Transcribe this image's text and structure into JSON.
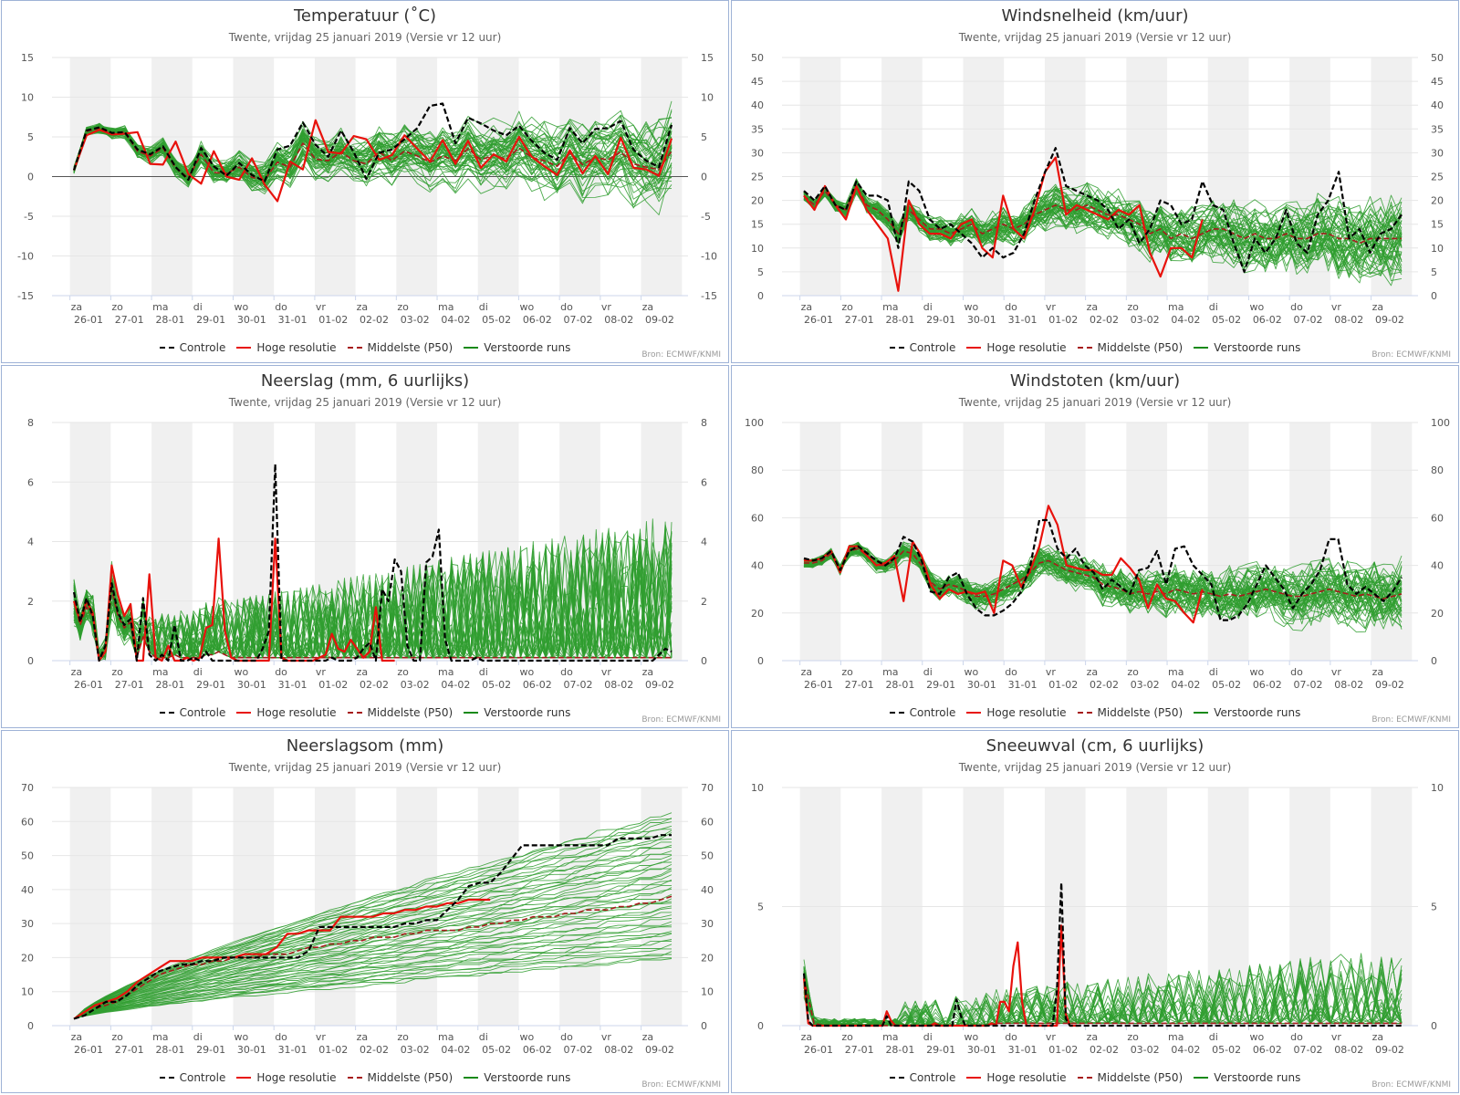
{
  "subtitle": "Twente, vrijdag 25 januari 2019 (Versie vr 12 uur)",
  "credit": "Bron: ECMWF/KNMI",
  "legend": [
    {
      "label": "Controle",
      "color": "#000000",
      "style": "dashed"
    },
    {
      "label": "Hoge resolutie",
      "color": "#e8120c",
      "style": "solid"
    },
    {
      "label": "Middelste (P50)",
      "color": "#a61b1b",
      "style": "dashed"
    },
    {
      "label": "Verstoorde runs",
      "color": "#1a8a1a",
      "style": "solid"
    }
  ],
  "colors": {
    "control": "#000000",
    "hires": "#e8120c",
    "median": "#a61b1b",
    "ensemble": "#2f9e2f",
    "band": "#f0f0f0"
  },
  "day_labels": [
    {
      "day": "za",
      "date": "26-01"
    },
    {
      "day": "zo",
      "date": "27-01"
    },
    {
      "day": "ma",
      "date": "28-01"
    },
    {
      "day": "di",
      "date": "29-01"
    },
    {
      "day": "wo",
      "date": "30-01"
    },
    {
      "day": "do",
      "date": "31-01"
    },
    {
      "day": "vr",
      "date": "01-02"
    },
    {
      "day": "za",
      "date": "02-02"
    },
    {
      "day": "zo",
      "date": "03-02"
    },
    {
      "day": "ma",
      "date": "04-02"
    },
    {
      "day": "di",
      "date": "05-02"
    },
    {
      "day": "wo",
      "date": "06-02"
    },
    {
      "day": "do",
      "date": "07-02"
    },
    {
      "day": "vr",
      "date": "08-02"
    },
    {
      "day": "za",
      "date": "09-02"
    }
  ],
  "chart_data": [
    {
      "type": "line",
      "title": "Temperatuur (˚C)",
      "ylim": [
        -15,
        15
      ],
      "yticks": [
        -15,
        -10,
        -5,
        0,
        5,
        10,
        15
      ],
      "zero_line": true,
      "control": [
        0.8,
        5.8,
        6.2,
        5.5,
        5.6,
        3.4,
        2.8,
        3.8,
        1.2,
        -0.4,
        3.6,
        1.3,
        0.1,
        1.7,
        0.2,
        -0.6,
        3.4,
        3.9,
        6.8,
        4.0,
        2.5,
        5.8,
        3.1,
        -0.3,
        3.0,
        3.4,
        4.7,
        6.1,
        8.9,
        9.2,
        4.2,
        7.4,
        6.7,
        5.8,
        5.2,
        6.4,
        4.5,
        3.0,
        2.1,
        6.1,
        4.2,
        6.0,
        6.1,
        7.0,
        3.4,
        2.0,
        1.2,
        6.5
      ],
      "hires": [
        0.8,
        5.2,
        5.9,
        5.3,
        5.4,
        5.6,
        1.6,
        1.5,
        4.4,
        0.3,
        -0.9,
        3.2,
        0.0,
        -0.4,
        2.3,
        -1.0,
        -3.1,
        1.9,
        0.9,
        7.1,
        3.1,
        2.9,
        5.1,
        4.7,
        2.1,
        2.7,
        5.2,
        3.5,
        1.9,
        4.6,
        1.6,
        4.5,
        1.1,
        2.8,
        1.9,
        5.0,
        2.5,
        1.3,
        0.2,
        3.3,
        0.4,
        2.6,
        0.3,
        4.9,
        1.1,
        0.9,
        0.1,
        4.8
      ],
      "median": [
        0.8,
        5.7,
        6.1,
        5.4,
        5.6,
        3.2,
        2.6,
        3.6,
        1.1,
        -0.2,
        2.8,
        0.5,
        0.4,
        1.2,
        -0.1,
        -0.4,
        1.8,
        1.2,
        4.2,
        2.2,
        2.0,
        3.1,
        2.0,
        1.6,
        3.1,
        2.0,
        3.2,
        2.6,
        1.8,
        2.6,
        2.0,
        3.5,
        2.1,
        2.7,
        2.2,
        3.6,
        2.4,
        2.0,
        1.3,
        3.0,
        1.5,
        2.4,
        2.1,
        3.1,
        1.6,
        1.2,
        0.9,
        3.2
      ],
      "ensemble": {
        "seed": 11,
        "members": 50,
        "spread": 4.2,
        "noise": 2.6
      }
    },
    {
      "type": "line",
      "title": "Windsnelheid (km/uur)",
      "ylim": [
        0,
        50
      ],
      "yticks": [
        0,
        5,
        10,
        15,
        20,
        25,
        30,
        35,
        40,
        45,
        50
      ],
      "control": [
        22,
        20,
        23,
        19,
        18,
        24,
        21,
        21,
        20,
        10,
        24,
        22,
        16,
        14,
        15,
        13,
        11,
        8,
        10,
        8,
        9,
        13,
        20,
        26,
        31,
        23,
        22,
        21,
        20,
        18,
        14,
        16,
        11,
        14,
        20,
        19,
        15,
        16,
        24,
        19,
        18,
        11,
        5,
        12,
        9,
        12,
        18,
        11,
        9,
        17,
        20,
        26,
        12,
        14,
        9,
        13,
        14,
        17
      ],
      "hires": [
        21,
        18,
        23,
        19,
        16,
        23,
        18,
        15,
        12,
        1,
        20,
        15,
        13,
        13,
        12,
        15,
        16,
        10,
        8,
        21,
        14,
        12,
        18,
        26,
        29,
        17,
        19,
        18,
        17,
        16,
        18,
        17,
        19,
        9,
        4,
        10,
        10,
        8,
        16
      ],
      "median": [
        21,
        19,
        22,
        19,
        18,
        23,
        19,
        18,
        16,
        13,
        18,
        16,
        14,
        14,
        13,
        14,
        15,
        13,
        14,
        15,
        14,
        15,
        17,
        18,
        19,
        18,
        18,
        19,
        18,
        17,
        17,
        16,
        15,
        13,
        14,
        12,
        13,
        12,
        13,
        14,
        14,
        13,
        12,
        13,
        12,
        12,
        13,
        12,
        12,
        13,
        13,
        12,
        12,
        11,
        12,
        12,
        12,
        12
      ],
      "ensemble": {
        "seed": 23,
        "members": 50,
        "spread": 5,
        "noise": 5.5
      }
    },
    {
      "type": "line",
      "title": "Neerslag (mm, 6 uurlijks)",
      "ylim": [
        0,
        8
      ],
      "yticks": [
        0,
        2,
        4,
        6,
        8
      ],
      "positive": true,
      "control": [
        2.3,
        1.3,
        2.1,
        1.5,
        0.0,
        0.5,
        2.6,
        1.6,
        1.2,
        1.4,
        0.0,
        2.1,
        0.2,
        0.0,
        0.2,
        0.0,
        1.2,
        0.0,
        0.0,
        0.1,
        0.0,
        0.3,
        0.0,
        0.0,
        0.0,
        0.0,
        0.0,
        0.0,
        0.0,
        0.0,
        0.4,
        1.0,
        6.6,
        0.0,
        0.0,
        0.0,
        0.0,
        0.0,
        0.0,
        0.0,
        0.0,
        0.1,
        0.0,
        0.0,
        0.0,
        0.1,
        0.4,
        0.6,
        0.0,
        2.4,
        2.0,
        3.4,
        3.0,
        0.5,
        0.0,
        0.0,
        3.3,
        3.5,
        4.4,
        0.7,
        0.0,
        0.0,
        0.0,
        0.0,
        0.1,
        0.0,
        0.0,
        0.0,
        0.0,
        0.0,
        0.0,
        0.0,
        0.0,
        0.0,
        0.0,
        0.0,
        0.0,
        0.0,
        0.0,
        0.0,
        0.0,
        0.0,
        0.0,
        0.0,
        0.0,
        0.0,
        0.0,
        0.0,
        0.0,
        0.0,
        0.0,
        0.0,
        0.0,
        0.2,
        0.4,
        0.3
      ],
      "hires": [
        2.0,
        1.3,
        2.0,
        1.6,
        0.0,
        0.3,
        3.2,
        2.2,
        1.5,
        1.9,
        0.0,
        0.0,
        2.9,
        0.1,
        0.0,
        0.5,
        0.0,
        0.0,
        0.1,
        0.0,
        0.1,
        1.1,
        1.2,
        4.1,
        1.0,
        0.1,
        0.0,
        0.0,
        0.0,
        0.0,
        0.0,
        0.0,
        4.1,
        0.1,
        0.0,
        0.0,
        0.0,
        0.0,
        0.0,
        0.1,
        0.2,
        0.9,
        0.4,
        0.3,
        0.7,
        0.4,
        0.1,
        0.3,
        1.8,
        0.0,
        0.0,
        0.0
      ],
      "median": [
        2.0,
        1.2,
        1.8,
        1.5,
        0.1,
        0.4,
        2.4,
        1.5,
        1.1,
        1.3,
        0.1,
        0.8,
        0.3,
        0.1,
        0.1,
        0.1,
        0.2,
        0.1,
        0.1,
        0.1,
        0.1,
        0.2,
        0.2,
        0.3,
        0.2,
        0.1,
        0.1,
        0.1,
        0.1,
        0.1,
        0.1,
        0.1,
        0.1,
        0.1,
        0.1,
        0.1,
        0.1,
        0.1,
        0.1,
        0.1,
        0.1,
        0.1,
        0.1,
        0.1,
        0.1,
        0.1,
        0.1,
        0.1,
        0.1,
        0.1,
        0.1,
        0.1,
        0.1,
        0.1,
        0.1,
        0.1,
        0.1,
        0.1,
        0.1,
        0.1,
        0.1,
        0.1,
        0.1,
        0.1,
        0.1,
        0.1,
        0.1,
        0.1,
        0.1,
        0.1,
        0.1,
        0.1,
        0.1,
        0.1,
        0.1,
        0.1,
        0.1,
        0.1,
        0.1,
        0.1,
        0.1,
        0.1,
        0.1,
        0.1,
        0.1,
        0.1,
        0.1,
        0.1,
        0.1,
        0.1,
        0.1,
        0.1,
        0.1,
        0.1,
        0.1,
        0.1
      ],
      "ensemble": {
        "seed": 37,
        "members": 50,
        "spread": 0.4,
        "noise": 1.8,
        "sparse": 0.55
      }
    },
    {
      "type": "line",
      "title": "Windstoten (km/uur)",
      "ylim": [
        0,
        100
      ],
      "yticks": [
        0,
        20,
        40,
        60,
        80,
        100
      ],
      "control": [
        43,
        42,
        43,
        46,
        38,
        46,
        48,
        45,
        42,
        40,
        43,
        52,
        50,
        42,
        29,
        28,
        35,
        37,
        28,
        22,
        19,
        19,
        21,
        24,
        29,
        40,
        59,
        59,
        47,
        43,
        47,
        40,
        37,
        30,
        34,
        31,
        28,
        38,
        39,
        46,
        32,
        47,
        48,
        40,
        36,
        32,
        17,
        17,
        19,
        24,
        32,
        40,
        35,
        30,
        22,
        28,
        32,
        38,
        51,
        51,
        32,
        28,
        31,
        28,
        25,
        29,
        35
      ],
      "hires": [
        42,
        42,
        43,
        46,
        37,
        48,
        48,
        44,
        40,
        41,
        44,
        25,
        50,
        44,
        32,
        26,
        30,
        28,
        29,
        28,
        29,
        20,
        42,
        40,
        31,
        38,
        48,
        65,
        57,
        40,
        39,
        38,
        38,
        36,
        36,
        43,
        39,
        34,
        22,
        32,
        26,
        25,
        20,
        16,
        30
      ],
      "median": [
        41,
        41,
        42,
        45,
        38,
        46,
        47,
        44,
        40,
        40,
        42,
        46,
        45,
        40,
        33,
        30,
        32,
        31,
        29,
        27,
        27,
        28,
        30,
        32,
        34,
        37,
        41,
        42,
        40,
        38,
        37,
        36,
        35,
        32,
        31,
        30,
        28,
        29,
        28,
        29,
        28,
        30,
        29,
        28,
        29,
        28,
        27,
        28,
        27,
        28,
        29,
        30,
        29,
        28,
        27,
        27,
        28,
        29,
        30,
        29,
        28,
        27,
        28,
        27,
        26,
        27,
        28
      ],
      "ensemble": {
        "seed": 51,
        "members": 50,
        "spread": 8,
        "noise": 10
      }
    },
    {
      "type": "line",
      "title": "Neerslagsom (mm)",
      "ylim": [
        0,
        70
      ],
      "yticks": [
        0,
        10,
        20,
        30,
        40,
        50,
        60,
        70
      ],
      "cumulative": true,
      "control": [
        2,
        3,
        5,
        7,
        7,
        9,
        12,
        14,
        16,
        17,
        18,
        18,
        19,
        19,
        20,
        20,
        20,
        20,
        20,
        20,
        20,
        20,
        22,
        29,
        29,
        29,
        29,
        29,
        29,
        29,
        29,
        30,
        30,
        31,
        31,
        34,
        37,
        41,
        42,
        42,
        45,
        49,
        53,
        53,
        53,
        53,
        53,
        53,
        53,
        53,
        53,
        55,
        55,
        55,
        55,
        56,
        56
      ],
      "hires": [
        2,
        4,
        6,
        7,
        8,
        10,
        13,
        15,
        17,
        19,
        19,
        19,
        20,
        20,
        20,
        20,
        21,
        21,
        21,
        23,
        27,
        27,
        28,
        28,
        28,
        32,
        32,
        32,
        32,
        33,
        33,
        34,
        34,
        35,
        35,
        36,
        36,
        37,
        37,
        37
      ],
      "median": [
        2,
        3,
        5,
        6,
        7,
        9,
        11,
        13,
        15,
        16,
        17,
        18,
        18,
        19,
        19,
        20,
        20,
        20,
        21,
        21,
        21,
        22,
        23,
        23,
        24,
        24,
        25,
        25,
        26,
        26,
        26,
        27,
        27,
        28,
        28,
        28,
        28,
        29,
        29,
        30,
        30,
        31,
        31,
        32,
        32,
        32,
        33,
        33,
        34,
        34,
        34,
        35,
        35,
        36,
        36,
        37,
        38
      ],
      "ensemble": {
        "seed": 67,
        "members": 50,
        "spread": 0.18,
        "noise": 0.55,
        "final_min": 19,
        "final_max": 63
      }
    },
    {
      "type": "line",
      "title": "Sneeuwval (cm, 6 uurlijks)",
      "ylim": [
        0,
        10
      ],
      "yticks": [
        0,
        5,
        10
      ],
      "positive": true,
      "control": [
        2.2,
        0.2,
        0.0,
        0.0,
        0.0,
        0.0,
        0.0,
        0.0,
        0.0,
        0.0,
        0.0,
        0.0,
        0.0,
        0.0,
        0.0,
        0.0,
        0.0,
        0.0,
        0.0,
        0.4,
        0.0,
        0.0,
        0.0,
        0.0,
        0.0,
        0.0,
        0.0,
        0.0,
        0.0,
        0.0,
        0.0,
        0.0,
        0.0,
        0.0,
        0.0,
        1.1,
        0.4,
        0.0,
        0.0,
        0.0,
        0.0,
        0.0,
        0.0,
        0.0,
        0.0,
        0.0,
        0.0,
        0.0,
        0.0,
        0.0,
        0.0,
        0.0,
        0.0,
        0.0,
        0.0,
        0.0,
        0.0,
        0.0,
        1.5,
        6.0,
        0.3,
        0.0,
        0.0,
        0.0,
        0.0,
        0.0,
        0.0,
        0.0,
        0.0,
        0.0,
        0.0,
        0.0,
        0.0,
        0.0,
        0.0,
        0.0,
        0.0,
        0.0,
        0.0,
        0.0,
        0.0,
        0.0,
        0.0,
        0.0,
        0.0,
        0.0,
        0.0,
        0.0,
        0.0,
        0.0,
        0.0,
        0.0,
        0.0,
        0.0,
        0.0,
        0.0,
        0.0,
        0.0,
        0.0,
        0.0,
        0.0,
        0.0,
        0.0,
        0.0,
        0.0,
        0.0,
        0.0,
        0.0,
        0.0,
        0.0,
        0.0,
        0.0,
        0.0,
        0.0,
        0.0,
        0.0,
        0.0,
        0.0,
        0.0,
        0.0,
        0.0,
        0.0,
        0.0,
        0.0,
        0.0,
        0.0,
        0.0,
        0.0,
        0.0,
        0.0,
        0.0,
        0.0,
        0.0,
        0.0,
        0.0,
        0.0,
        0.0,
        0.0
      ],
      "hires": [
        2.0,
        0.1,
        0.0,
        0.0,
        0.0,
        0.0,
        0.0,
        0.0,
        0.0,
        0.0,
        0.0,
        0.0,
        0.0,
        0.0,
        0.0,
        0.0,
        0.0,
        0.0,
        0.0,
        0.6,
        0.2,
        0.0,
        0.0,
        0.0,
        0.0,
        0.0,
        0.0,
        0.0,
        0.0,
        0.0,
        0.1,
        0.0,
        0.0,
        0.0,
        0.0,
        0.0,
        0.0,
        0.0,
        0.0,
        0.0,
        0.0,
        0.0,
        0.0,
        0.1,
        0.0,
        1.0,
        1.0,
        0.6,
        2.5,
        3.5,
        1.0,
        0.0,
        0.0,
        0.0,
        0.0,
        0.0,
        0.0,
        0.0,
        0.0,
        4.2,
        0.5,
        0.0,
        0.0,
        0.0
      ],
      "median": [
        2.0,
        0.1,
        0.0,
        0.0,
        0.0,
        0.0,
        0.0,
        0.0,
        0.0,
        0.0,
        0.0,
        0.0,
        0.0,
        0.0,
        0.0,
        0.0,
        0.0,
        0.0,
        0.0,
        0.1,
        0.1,
        0.1,
        0.1,
        0.1,
        0.1,
        0.1,
        0.1,
        0.1,
        0.1,
        0.1,
        0.1,
        0.1,
        0.1,
        0.1,
        0.1,
        0.1,
        0.1,
        0.1,
        0.1,
        0.1,
        0.1,
        0.1,
        0.1,
        0.1,
        0.1,
        0.1,
        0.1,
        0.1,
        0.1,
        0.1,
        0.1,
        0.1,
        0.1,
        0.1,
        0.1,
        0.1,
        0.1,
        0.1,
        0.1,
        0.1
      ],
      "ensemble": {
        "seed": 83,
        "members": 50,
        "spread": 0.25,
        "noise": 1.2,
        "sparse": 0.7
      }
    }
  ]
}
